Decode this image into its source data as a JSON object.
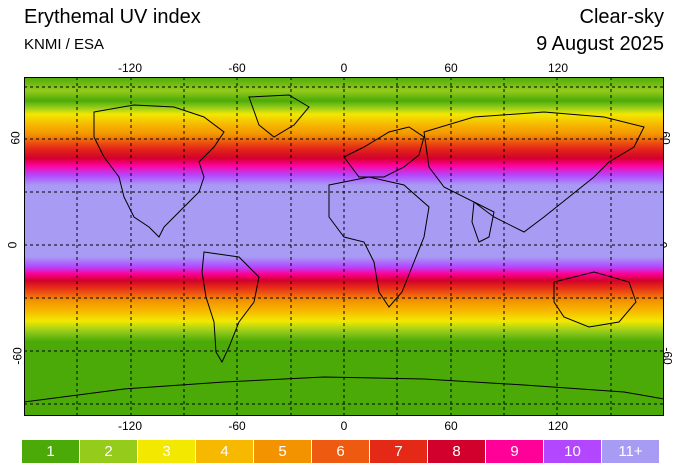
{
  "header": {
    "title": "Erythemal UV index",
    "source": "KNMI / ESA",
    "mode": "Clear-sky",
    "date": "9 August 2025"
  },
  "axes": {
    "lon_ticks": [
      "-120",
      "-60",
      "0",
      "60",
      "120"
    ],
    "lat_ticks": [
      "60",
      "0",
      "-60"
    ]
  },
  "legend": [
    {
      "label": "1",
      "color": "#4caa08"
    },
    {
      "label": "2",
      "color": "#95cc1c"
    },
    {
      "label": "3",
      "color": "#f2e800"
    },
    {
      "label": "4",
      "color": "#f7b800"
    },
    {
      "label": "5",
      "color": "#f39300"
    },
    {
      "label": "6",
      "color": "#ee5b10"
    },
    {
      "label": "7",
      "color": "#e42a17"
    },
    {
      "label": "8",
      "color": "#d2002c"
    },
    {
      "label": "9",
      "color": "#ff0099"
    },
    {
      "label": "10",
      "color": "#b347ff"
    },
    {
      "label": "11+",
      "color": "#a89bf4"
    }
  ]
}
